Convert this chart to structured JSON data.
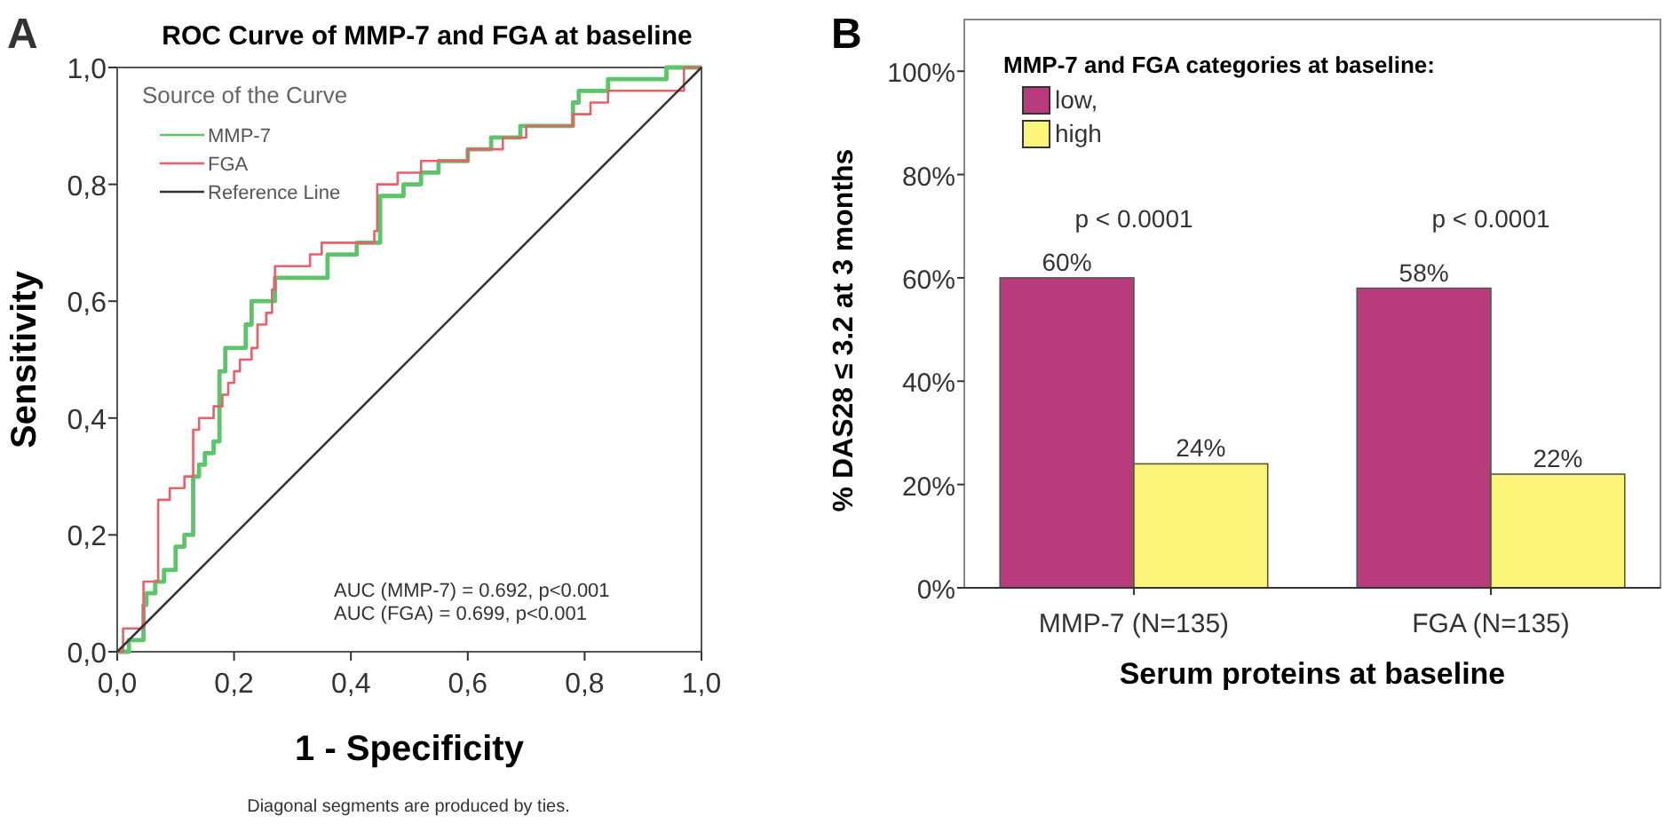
{
  "chart_data": [
    {
      "type": "step",
      "title": "ROC Curve of MMP-7 and FGA at baseline",
      "xlabel": "1 - Specificity",
      "ylabel": "Sensitivity",
      "legend_title": "Source of the Curve",
      "legend": "top left",
      "annotations": [
        "A",
        "AUC (MMP-7) = 0.692, p<0.001",
        "AUC (FGA) = 0.699, p<0.001",
        "Diagonal segments are produced by ties."
      ],
      "xlim": [
        0,
        1
      ],
      "ylim": [
        0,
        1
      ],
      "xticks": [
        {
          "value": 0,
          "label": "0,0"
        },
        {
          "value": 0.2,
          "label": "0,2"
        },
        {
          "value": 0.4,
          "label": "0,4"
        },
        {
          "value": 0.6,
          "label": "0,6"
        },
        {
          "value": 0.8,
          "label": "0,8"
        },
        {
          "value": 1,
          "label": "1,0"
        }
      ],
      "yticks": [
        {
          "value": 0,
          "label": "0,0"
        },
        {
          "value": 0.2,
          "label": "0,2"
        },
        {
          "value": 0.4,
          "label": "0,4"
        },
        {
          "value": 0.6,
          "label": "0,6"
        },
        {
          "value": 0.8,
          "label": "0,8"
        },
        {
          "value": 1,
          "label": "1,0"
        }
      ],
      "series": [
        {
          "name": "MMP-7",
          "color": "#5cc46a",
          "x": [
            0,
            0.02,
            0.045,
            0.05,
            0.065,
            0.08,
            0.1,
            0.115,
            0.13,
            0.14,
            0.15,
            0.165,
            0.175,
            0.185,
            0.22,
            0.23,
            0.27,
            0.36,
            0.41,
            0.45,
            0.49,
            0.52,
            0.55,
            0.6,
            0.64,
            0.69,
            0.78,
            0.79,
            0.84,
            0.94,
            1
          ],
          "values": [
            0,
            0.02,
            0.08,
            0.1,
            0.12,
            0.14,
            0.18,
            0.2,
            0.3,
            0.32,
            0.34,
            0.36,
            0.48,
            0.52,
            0.56,
            0.6,
            0.64,
            0.68,
            0.7,
            0.78,
            0.8,
            0.82,
            0.84,
            0.86,
            0.88,
            0.9,
            0.94,
            0.96,
            0.98,
            1,
            1
          ]
        },
        {
          "name": "FGA",
          "color": "#e8606a",
          "x": [
            0,
            0.01,
            0.045,
            0.07,
            0.09,
            0.115,
            0.13,
            0.14,
            0.165,
            0.18,
            0.19,
            0.2,
            0.21,
            0.23,
            0.24,
            0.255,
            0.265,
            0.27,
            0.33,
            0.35,
            0.44,
            0.445,
            0.48,
            0.52,
            0.6,
            0.66,
            0.7,
            0.78,
            0.81,
            0.84,
            0.97,
            1
          ],
          "values": [
            0,
            0.04,
            0.12,
            0.26,
            0.28,
            0.3,
            0.38,
            0.4,
            0.42,
            0.44,
            0.46,
            0.48,
            0.5,
            0.52,
            0.56,
            0.58,
            0.62,
            0.66,
            0.68,
            0.7,
            0.72,
            0.8,
            0.82,
            0.84,
            0.86,
            0.88,
            0.9,
            0.92,
            0.94,
            0.96,
            1,
            1
          ]
        },
        {
          "name": "Reference Line",
          "type": "line",
          "color": "#333333",
          "x": [
            0,
            1
          ],
          "values": [
            0,
            1
          ]
        }
      ]
    },
    {
      "type": "bar",
      "categories": [
        "MMP-7 (N=135)",
        "FGA (N=135)"
      ],
      "xlabel": "Serum proteins at baseline",
      "ylabel": "% DAS28 ≤ 3.2 at 3 months",
      "legend_title": "MMP-7 and FGA categories at baseline:",
      "legend": "top left",
      "annotations": [
        "B",
        "p < 0.0001",
        "p < 0.0001"
      ],
      "ylim": [
        0,
        110
      ],
      "yticks": [
        {
          "value": 0,
          "label": "0%"
        },
        {
          "value": 20,
          "label": "20%"
        },
        {
          "value": 40,
          "label": "40%"
        },
        {
          "value": 60,
          "label": "60%"
        },
        {
          "value": 80,
          "label": "80%"
        },
        {
          "value": 100,
          "label": "100%"
        }
      ],
      "series": [
        {
          "name": "low,",
          "color": "#b83c7c",
          "values": [
            60,
            58
          ],
          "value_labels": [
            "60%",
            "58%"
          ]
        },
        {
          "name": "high",
          "color": "#fbf57a",
          "values": [
            24,
            22
          ],
          "value_labels": [
            "24%",
            "22%"
          ]
        }
      ]
    }
  ]
}
